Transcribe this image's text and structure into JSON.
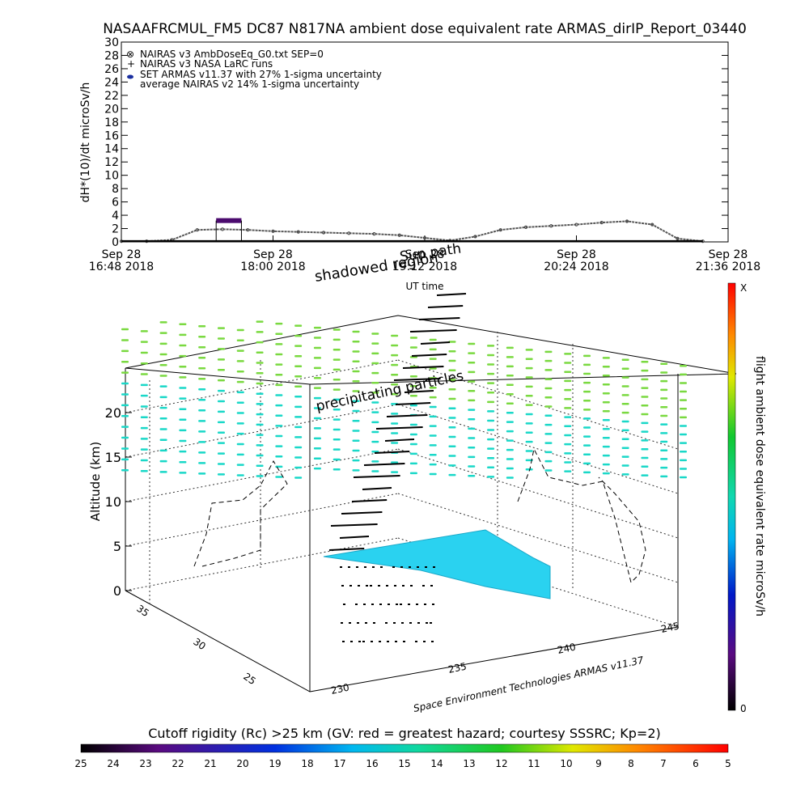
{
  "chart_data": [
    {
      "type": "line",
      "title": "NASAAFRCMUL_FM5 DC87 N817NA ambient dose equivalent rate ARMAS_dirIP_Report_03440",
      "ylabel": "dH*(10)/dt microSv/h",
      "xlabel": "UT time",
      "ylim": [
        0,
        30
      ],
      "y_ticks": [
        "0",
        "2",
        "4",
        "6",
        "8",
        "10",
        "12",
        "14",
        "16",
        "18",
        "20",
        "22",
        "24",
        "26",
        "28",
        "30"
      ],
      "x_ticks": [
        {
          "line1": "Sep 28",
          "line2": "16:48 2018"
        },
        {
          "line1": "Sep 28",
          "line2": "18:00 2018"
        },
        {
          "line1": "Sep 28",
          "line2": "19:12 2018"
        },
        {
          "line1": "Sep 28",
          "line2": "20:24 2018"
        },
        {
          "line1": "Sep 28",
          "line2": "21:36 2018"
        }
      ],
      "legend": [
        {
          "marker": "⊗",
          "label": "NAIRAS v3 AmbDoseEq_G0.txt SEP=0"
        },
        {
          "marker": "+",
          "label": "NAIRAS v3 NASA LaRC runs"
        },
        {
          "marker": "●",
          "label": "SET ARMAS v11.37 with 27% 1-sigma uncertainty"
        },
        {
          "marker": "",
          "label": "average NAIRAS v2 14% 1-sigma uncertainty"
        }
      ],
      "legend_position": "top-left",
      "x_hours": [
        16.8,
        17.0,
        17.2,
        17.4,
        17.6,
        17.8,
        18.0,
        18.2,
        18.4,
        18.6,
        18.8,
        19.0,
        19.2,
        19.4,
        19.6,
        19.8,
        20.0,
        20.2,
        20.4,
        20.6,
        20.8,
        21.0,
        21.2,
        21.4
      ],
      "series": [
        {
          "name": "NAIRAS v3 AmbDoseEq_G0.txt SEP=0",
          "values": [
            0.1,
            0.1,
            0.3,
            1.8,
            1.9,
            1.8,
            1.6,
            1.5,
            1.4,
            1.3,
            1.2,
            1.0,
            0.6,
            0.2,
            0.8,
            1.8,
            2.2,
            2.4,
            2.6,
            2.9,
            3.1,
            2.6,
            0.5,
            0.1
          ]
        },
        {
          "name": "NAIRAS v3 NASA LaRC runs",
          "values": [
            0.1,
            0.1,
            0.1,
            0.1,
            0.1,
            0.1,
            0.1,
            0.1,
            0.1,
            0.1,
            0.1,
            0.1,
            0.1,
            0.1,
            0.1,
            0.1,
            0.1,
            0.1,
            0.1,
            0.1,
            0.1,
            0.1,
            0.1,
            0.1
          ]
        }
      ],
      "armas_segment": {
        "x_start": 17.55,
        "x_end": 17.75,
        "value": 3.2
      },
      "colors": {
        "armas": "#4b0a6e",
        "nairas": "#555555"
      }
    },
    {
      "type": "scatter",
      "title": "",
      "zlabel": "Altitude (km)",
      "z_ticks": [
        "0",
        "5",
        "10",
        "15",
        "20"
      ],
      "lat_ticks": [
        "25",
        "30",
        "35"
      ],
      "lon_ticks": [
        "230",
        "235",
        "240",
        "245"
      ],
      "annotations": [
        "shadowed region",
        "Sun path",
        "precipitating particles",
        "UT time",
        "Space Environment Technologies ARMAS v11.37"
      ],
      "colorbar_right": {
        "label": "flight ambient dose equivalent rate microSv/h",
        "top": "X",
        "bottom": "0"
      },
      "colorbar_bottom": {
        "label": "Cutoff rigidity (Rc) >25 km (GV: red = greatest hazard; courtesy SSSRC; Kp=2)",
        "ticks": [
          "25",
          "24",
          "23",
          "22",
          "21",
          "20",
          "19",
          "18",
          "17",
          "16",
          "15",
          "14",
          "13",
          "12",
          "11",
          "10",
          "9",
          "8",
          "7",
          "6",
          "5"
        ]
      },
      "colors": {
        "region": "#2ad2f0",
        "particles_high": "#7ad940",
        "particles_low": "#1ad8c8"
      }
    }
  ]
}
